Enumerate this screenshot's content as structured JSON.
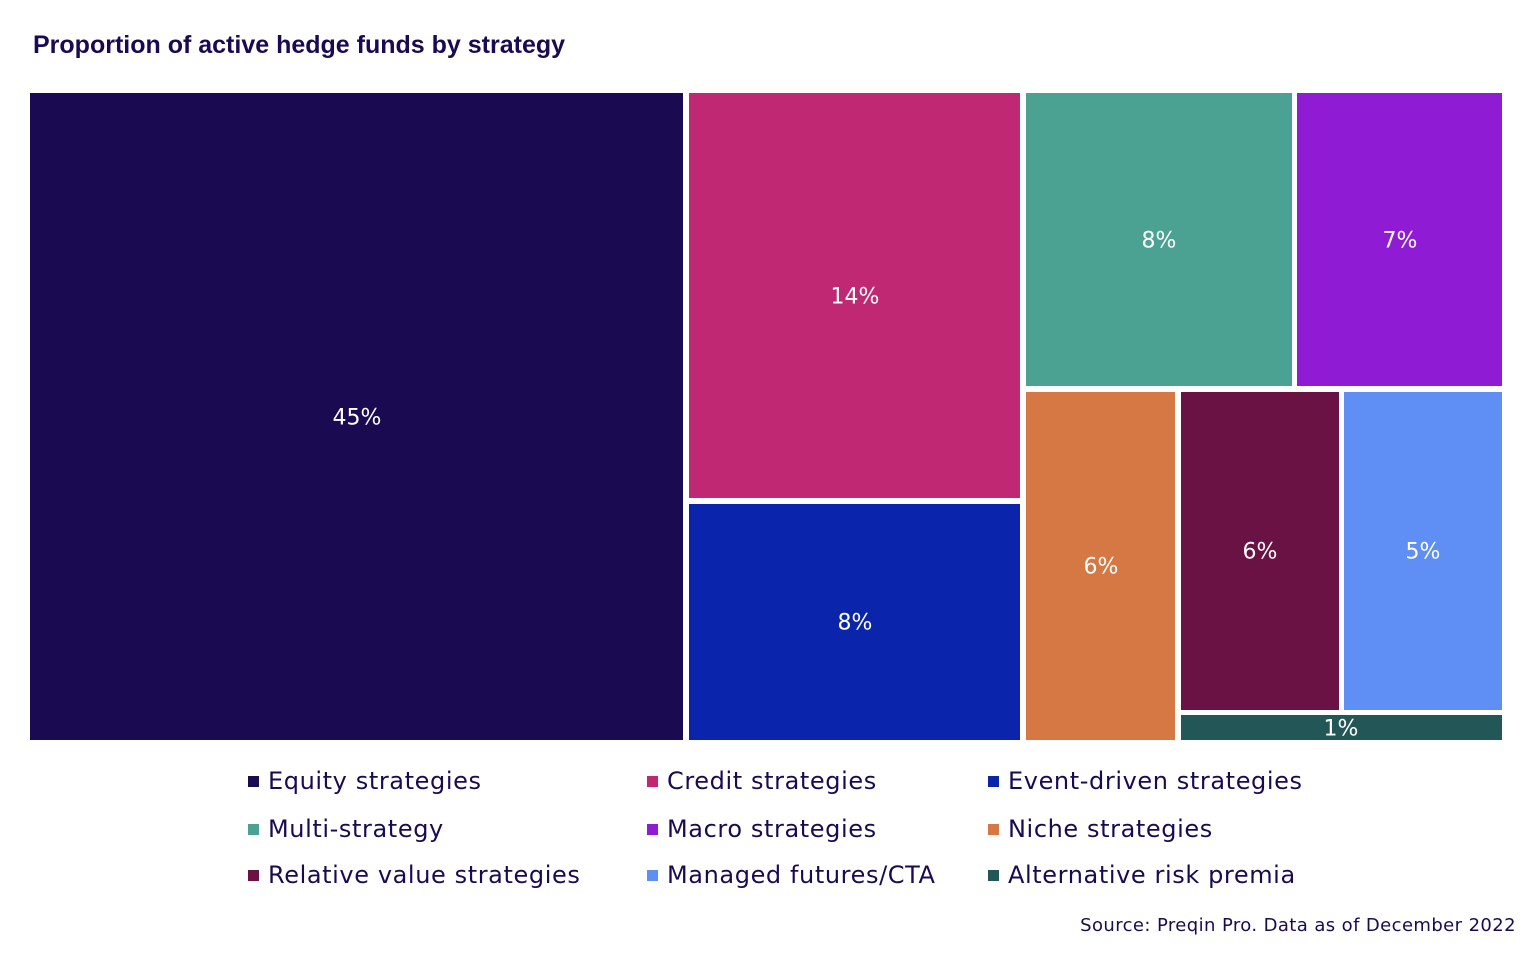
{
  "chart_data": {
    "type": "treemap",
    "title": "Proportion of active hedge funds by strategy",
    "legend_position": "bottom",
    "items": [
      {
        "name": "Equity strategies",
        "value": 45,
        "label": "45%",
        "color": "#1a0a52"
      },
      {
        "name": "Credit strategies",
        "value": 14,
        "label": "14%",
        "color": "#c02874"
      },
      {
        "name": "Event-driven strategies",
        "value": 8,
        "label": "8%",
        "color": "#0a24ab"
      },
      {
        "name": "Multi-strategy",
        "value": 8,
        "label": "8%",
        "color": "#4ba293"
      },
      {
        "name": "Macro strategies",
        "value": 7,
        "label": "7%",
        "color": "#8f1bd4"
      },
      {
        "name": "Niche strategies",
        "value": 6,
        "label": "6%",
        "color": "#d57843"
      },
      {
        "name": "Relative value strategies",
        "value": 6,
        "label": "6%",
        "color": "#6b1245"
      },
      {
        "name": "Managed futures/CTA",
        "value": 5,
        "label": "5%",
        "color": "#5f8ef5"
      },
      {
        "name": "Alternative risk premia",
        "value": 1,
        "label": "1%",
        "color": "#235657"
      }
    ],
    "source": "Source: Preqin Pro. Data as of December 2022"
  }
}
